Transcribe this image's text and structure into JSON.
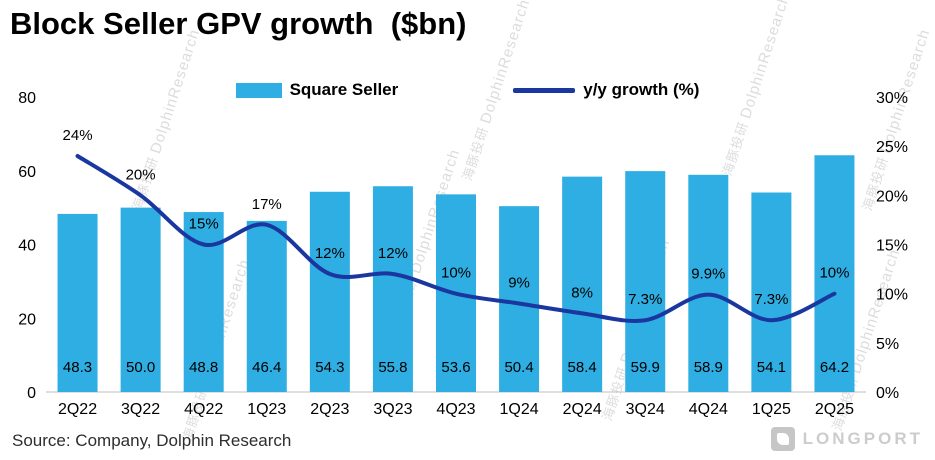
{
  "title": "Block Seller GPV growth  ($bn)",
  "source": "Source: Company, Dolphin Research",
  "watermark": {
    "cn": "海豚投研",
    "en": "DolphinResearch"
  },
  "logo_text": "LONGPORT",
  "colors": {
    "bar": "#2FAEE3",
    "line": "#1A37A0",
    "axis_line": "#bfbfbf",
    "label": "#000000"
  },
  "chart_data": {
    "type": "bar",
    "title": "Block Seller GPV growth ($bn)",
    "categories": [
      "2Q22",
      "3Q22",
      "4Q22",
      "1Q23",
      "2Q23",
      "3Q23",
      "4Q23",
      "1Q24",
      "2Q24",
      "3Q24",
      "4Q24",
      "1Q25",
      "2Q25"
    ],
    "series": [
      {
        "name": "Square Seller",
        "type": "bar",
        "axis": "left",
        "values": [
          48.3,
          50.0,
          48.8,
          46.4,
          54.3,
          55.8,
          53.6,
          50.4,
          58.4,
          59.9,
          58.9,
          54.1,
          64.2
        ],
        "labels": [
          "48.3",
          "50.0",
          "48.8",
          "46.4",
          "54.3",
          "55.8",
          "53.6",
          "50.4",
          "58.4",
          "59.9",
          "58.9",
          "54.1",
          "64.2"
        ]
      },
      {
        "name": "y/y growth (%)",
        "type": "line",
        "axis": "right",
        "values": [
          24,
          20,
          15,
          17,
          12,
          12,
          10,
          9,
          8,
          7.3,
          9.9,
          7.3,
          10
        ],
        "labels": [
          "24%",
          "20%",
          "15%",
          "17%",
          "12%",
          "12%",
          "10%",
          "9%",
          "8%",
          "7.3%",
          "9.9%",
          "7.3%",
          "10%"
        ]
      }
    ],
    "left_axis": {
      "min": 0,
      "max": 80,
      "ticks": [
        0,
        20,
        40,
        60,
        80
      ],
      "tick_labels": [
        "0",
        "20",
        "40",
        "60",
        "80"
      ]
    },
    "right_axis": {
      "min": 0,
      "max": 30,
      "ticks": [
        0,
        5,
        10,
        15,
        20,
        25,
        30
      ],
      "tick_labels": [
        "0%",
        "5%",
        "10%",
        "15%",
        "20%",
        "25%",
        "30%"
      ]
    },
    "grid": false,
    "legend_position": "top"
  }
}
